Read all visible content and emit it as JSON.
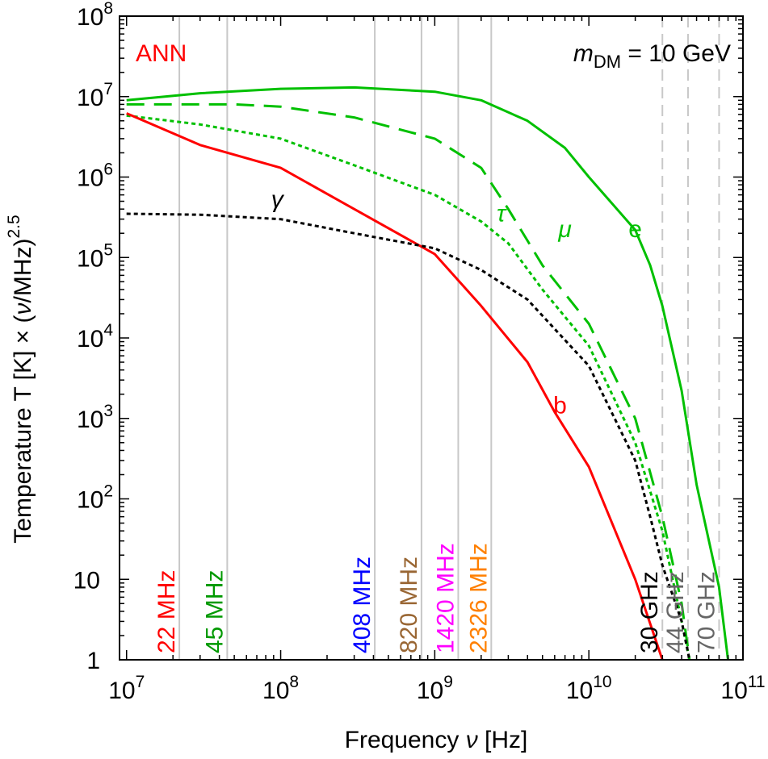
{
  "chart_data": {
    "type": "line",
    "xscale": "log",
    "yscale": "log",
    "xlim": [
      9000000,
      100000000000
    ],
    "ylim": [
      1,
      100000000
    ],
    "xlabel": "Frequency ν [Hz]",
    "ylabel": "Temperature T [K] × (ν/MHz)^2.5",
    "annotations": {
      "top_left": "ANN",
      "top_right": "mDM = 10 GeV"
    },
    "x_ticks": [
      {
        "value": 10000000,
        "base": "10",
        "exp": "7"
      },
      {
        "value": 100000000,
        "base": "10",
        "exp": "8"
      },
      {
        "value": 1000000000,
        "base": "10",
        "exp": "9"
      },
      {
        "value": 10000000000,
        "base": "10",
        "exp": "10"
      },
      {
        "value": 100000000000,
        "base": "10",
        "exp": "11"
      }
    ],
    "y_ticks": [
      {
        "value": 1,
        "base": "1",
        "exp": ""
      },
      {
        "value": 10,
        "base": "10",
        "exp": ""
      },
      {
        "value": 100,
        "base": "10",
        "exp": "2"
      },
      {
        "value": 1000,
        "base": "10",
        "exp": "3"
      },
      {
        "value": 10000,
        "base": "10",
        "exp": "4"
      },
      {
        "value": 100000,
        "base": "10",
        "exp": "5"
      },
      {
        "value": 1000000,
        "base": "10",
        "exp": "6"
      },
      {
        "value": 10000000,
        "base": "10",
        "exp": "7"
      },
      {
        "value": 100000000,
        "base": "10",
        "exp": "8"
      }
    ],
    "survey_lines": [
      {
        "freq": 22000000,
        "label": "22 MHz",
        "color": "#ff0000",
        "style": "solid"
      },
      {
        "freq": 45000000,
        "label": "45 MHz",
        "color": "#009900",
        "style": "solid"
      },
      {
        "freq": 408000000,
        "label": "408 MHz",
        "color": "#0000ff",
        "style": "solid"
      },
      {
        "freq": 820000000,
        "label": "820 MHz",
        "color": "#996633",
        "style": "solid"
      },
      {
        "freq": 1420000000,
        "label": "1420 MHz",
        "color": "#ff00ff",
        "style": "solid"
      },
      {
        "freq": 2326000000,
        "label": "2326 MHz",
        "color": "#ff8000",
        "style": "solid"
      },
      {
        "freq": 30000000000,
        "label": "30 GHz",
        "color": "#000000",
        "style": "dashed"
      },
      {
        "freq": 44000000000,
        "label": "44 GHz",
        "color": "#666666",
        "style": "dashed"
      },
      {
        "freq": 70000000000,
        "label": "70 GHz",
        "color": "#666666",
        "style": "dashed"
      }
    ],
    "series": [
      {
        "name": "e",
        "color": "#00c000",
        "dash": "",
        "label_at": [
          20000000000,
          180000
        ],
        "points": [
          [
            10000000,
            9000000
          ],
          [
            30000000,
            11000000
          ],
          [
            100000000,
            12500000
          ],
          [
            300000000,
            13000000
          ],
          [
            1000000000,
            11500000
          ],
          [
            2000000000,
            9000000
          ],
          [
            4000000000,
            5000000
          ],
          [
            7000000000,
            2300000
          ],
          [
            10000000000,
            1000000
          ],
          [
            20000000000,
            220000
          ],
          [
            25000000000,
            80000
          ],
          [
            30000000000,
            25000
          ],
          [
            40000000000,
            2200
          ],
          [
            50000000000,
            150
          ],
          [
            70000000000,
            8
          ],
          [
            80000000000,
            1
          ]
        ]
      },
      {
        "name": "μ",
        "color": "#00c000",
        "dash": "22 12",
        "label_at": [
          7000000000,
          180000
        ],
        "points": [
          [
            10000000,
            8000000
          ],
          [
            50000000,
            8000000
          ],
          [
            100000000,
            7500000
          ],
          [
            300000000,
            5500000
          ],
          [
            1000000000,
            3000000
          ],
          [
            2000000000,
            1300000
          ],
          [
            3000000000,
            400000
          ],
          [
            5000000000,
            80000
          ],
          [
            10000000000,
            15000
          ],
          [
            20000000000,
            1000
          ],
          [
            30000000000,
            60
          ],
          [
            40000000000,
            5
          ],
          [
            45000000000,
            1
          ]
        ]
      },
      {
        "name": "τ",
        "color": "#00c000",
        "dash": "5 4",
        "label_at": [
          2700000000,
          280000
        ],
        "points": [
          [
            10000000,
            5800000
          ],
          [
            30000000,
            4500000
          ],
          [
            100000000,
            3000000
          ],
          [
            300000000,
            1400000
          ],
          [
            1000000000,
            600000
          ],
          [
            2000000000,
            280000
          ],
          [
            3000000000,
            150000
          ],
          [
            5000000000,
            40000
          ],
          [
            10000000000,
            8000
          ],
          [
            20000000000,
            500
          ],
          [
            30000000000,
            40
          ],
          [
            40000000000,
            3
          ],
          [
            45000000000,
            1
          ]
        ]
      },
      {
        "name": "b",
        "color": "#ff0000",
        "dash": "",
        "label_at": [
          6500000000,
          1150
        ],
        "points": [
          [
            10000000,
            6200000
          ],
          [
            30000000,
            2500000
          ],
          [
            100000000,
            1300000
          ],
          [
            300000000,
            400000
          ],
          [
            1000000000,
            110000
          ],
          [
            2000000000,
            25000
          ],
          [
            4000000000,
            5000
          ],
          [
            6000000000,
            1200
          ],
          [
            10000000000,
            250
          ],
          [
            20000000000,
            10
          ],
          [
            30000000000,
            1
          ]
        ]
      },
      {
        "name": "γ",
        "color": "#000000",
        "dash": "5 4",
        "label_at": [
          95000000,
          420000
        ],
        "points": [
          [
            10000000,
            350000
          ],
          [
            30000000,
            340000
          ],
          [
            100000000,
            300000
          ],
          [
            300000000,
            200000
          ],
          [
            1000000000,
            130000
          ],
          [
            2000000000,
            70000
          ],
          [
            4000000000,
            30000
          ],
          [
            10000000000,
            4500
          ],
          [
            20000000000,
            300
          ],
          [
            25000000000,
            60
          ],
          [
            30000000000,
            15
          ],
          [
            40000000000,
            3
          ],
          [
            45000000000,
            1
          ]
        ]
      }
    ]
  }
}
